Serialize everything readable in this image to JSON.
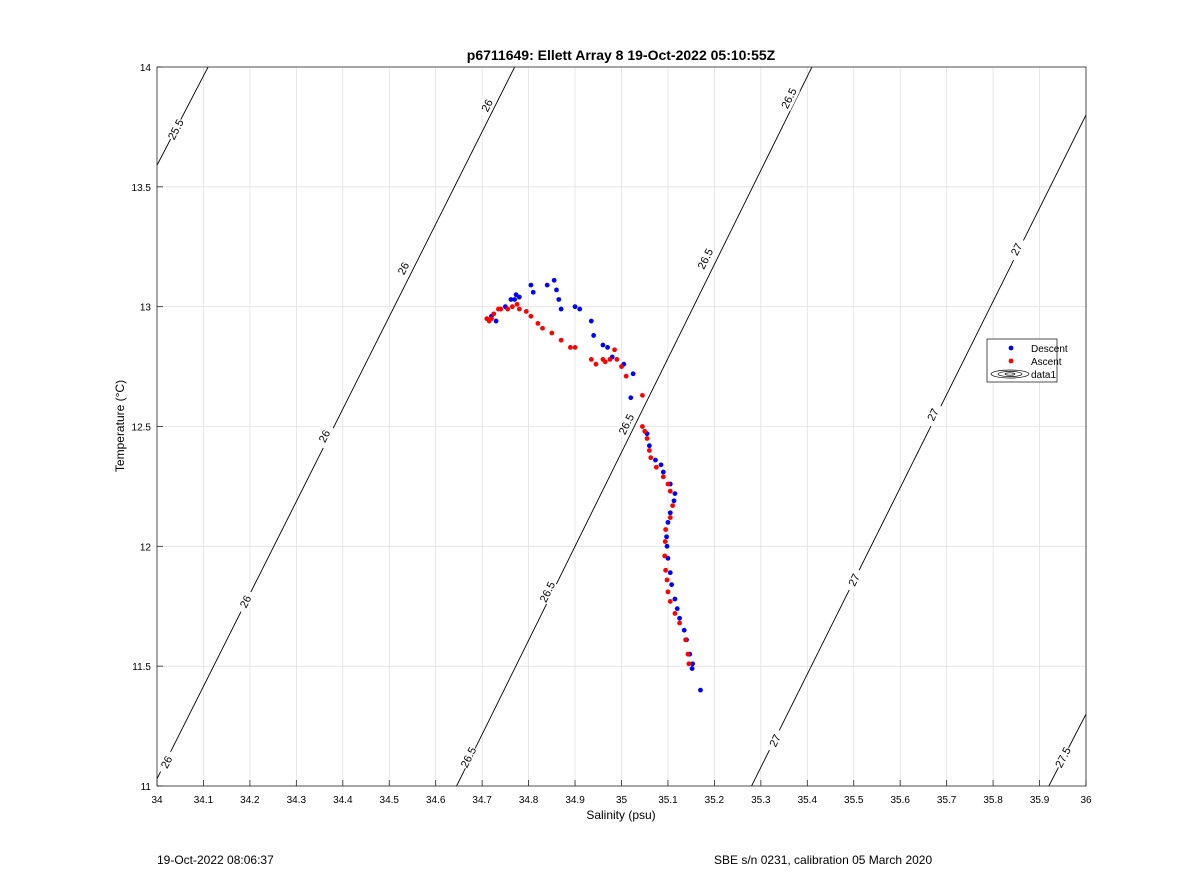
{
  "chart_data": {
    "type": "scatter",
    "title": "p6711649: Ellett Array 8 19-Oct-2022 05:10:55Z",
    "xlabel": "Salinity (psu)",
    "ylabel": "Temperature (°C)",
    "xlim": [
      34,
      36
    ],
    "ylim": [
      11,
      14
    ],
    "x_ticks": [
      "34",
      "34.1",
      "34.2",
      "34.3",
      "34.4",
      "34.5",
      "34.6",
      "34.7",
      "34.8",
      "34.9",
      "35",
      "35.1",
      "35.2",
      "35.3",
      "35.4",
      "35.5",
      "35.6",
      "35.7",
      "35.8",
      "35.9",
      "36"
    ],
    "y_ticks": [
      "11",
      "11.5",
      "12",
      "12.5",
      "13",
      "13.5",
      "14"
    ],
    "grid": true,
    "legend_position": "right",
    "legend": [
      "Descent",
      "Ascent",
      "data1"
    ],
    "series": [
      {
        "name": "Descent",
        "color": "#0000ff",
        "points": [
          [
            35.17,
            11.4
          ],
          [
            35.152,
            11.49
          ],
          [
            35.153,
            11.51
          ],
          [
            35.147,
            11.55
          ],
          [
            35.14,
            11.61
          ],
          [
            35.135,
            11.65
          ],
          [
            35.125,
            11.7
          ],
          [
            35.12,
            11.74
          ],
          [
            35.115,
            11.78
          ],
          [
            35.108,
            11.84
          ],
          [
            35.105,
            11.89
          ],
          [
            35.1,
            11.95
          ],
          [
            35.098,
            12.0
          ],
          [
            35.097,
            12.04
          ],
          [
            35.1,
            12.1
          ],
          [
            35.105,
            12.14
          ],
          [
            35.113,
            12.19
          ],
          [
            35.115,
            12.22
          ],
          [
            35.105,
            12.26
          ],
          [
            35.09,
            12.31
          ],
          [
            35.085,
            12.34
          ],
          [
            35.073,
            12.36
          ],
          [
            35.06,
            12.42
          ],
          [
            35.055,
            12.47
          ],
          [
            35.02,
            12.62
          ],
          [
            35.025,
            12.72
          ],
          [
            35.005,
            12.76
          ],
          [
            34.98,
            12.79
          ],
          [
            34.97,
            12.83
          ],
          [
            34.96,
            12.84
          ],
          [
            34.94,
            12.88
          ],
          [
            34.935,
            12.94
          ],
          [
            34.91,
            12.99
          ],
          [
            34.9,
            13.0
          ],
          [
            34.87,
            12.99
          ],
          [
            34.865,
            13.03
          ],
          [
            34.86,
            13.07
          ],
          [
            34.855,
            13.11
          ],
          [
            34.84,
            13.09
          ],
          [
            34.81,
            13.06
          ],
          [
            34.805,
            13.09
          ],
          [
            34.78,
            13.04
          ],
          [
            34.773,
            13.05
          ],
          [
            34.77,
            13.03
          ],
          [
            34.762,
            13.03
          ],
          [
            34.75,
            13.0
          ],
          [
            34.73,
            12.94
          ],
          [
            34.72,
            12.96
          ]
        ]
      },
      {
        "name": "Ascent",
        "color": "#ff0000",
        "points": [
          [
            35.145,
            11.51
          ],
          [
            35.143,
            11.55
          ],
          [
            35.138,
            11.61
          ],
          [
            35.125,
            11.68
          ],
          [
            35.115,
            11.72
          ],
          [
            35.105,
            11.77
          ],
          [
            35.1,
            11.81
          ],
          [
            35.098,
            11.86
          ],
          [
            35.095,
            11.9
          ],
          [
            35.093,
            11.96
          ],
          [
            35.094,
            12.02
          ],
          [
            35.095,
            12.07
          ],
          [
            35.105,
            12.12
          ],
          [
            35.11,
            12.17
          ],
          [
            35.105,
            12.23
          ],
          [
            35.1,
            12.26
          ],
          [
            35.09,
            12.29
          ],
          [
            35.075,
            12.33
          ],
          [
            35.063,
            12.37
          ],
          [
            35.06,
            12.4
          ],
          [
            35.055,
            12.45
          ],
          [
            35.05,
            12.48
          ],
          [
            35.045,
            12.5
          ],
          [
            35.045,
            12.63
          ],
          [
            35.01,
            12.71
          ],
          [
            35.0,
            12.75
          ],
          [
            34.99,
            12.78
          ],
          [
            34.985,
            12.82
          ],
          [
            34.975,
            12.78
          ],
          [
            34.965,
            12.77
          ],
          [
            34.96,
            12.78
          ],
          [
            34.945,
            12.76
          ],
          [
            34.935,
            12.78
          ],
          [
            34.9,
            12.83
          ],
          [
            34.89,
            12.83
          ],
          [
            34.87,
            12.86
          ],
          [
            34.85,
            12.89
          ],
          [
            34.83,
            12.91
          ],
          [
            34.82,
            12.93
          ],
          [
            34.805,
            12.96
          ],
          [
            34.795,
            12.98
          ],
          [
            34.78,
            12.99
          ],
          [
            34.775,
            13.01
          ],
          [
            34.765,
            13.0
          ],
          [
            34.755,
            12.99
          ],
          [
            34.74,
            12.99
          ],
          [
            34.735,
            12.99
          ],
          [
            34.725,
            12.97
          ],
          [
            34.72,
            12.95
          ],
          [
            34.715,
            12.94
          ],
          [
            34.71,
            12.95
          ]
        ]
      }
    ],
    "contours": [
      {
        "label": "25.5",
        "x": [
          34.0,
          34.11
        ],
        "y": [
          13.59,
          14.0
        ],
        "label_at": [
          [
            34.04,
            13.74
          ]
        ]
      },
      {
        "label": "26",
        "x": [
          34.0,
          34.77
        ],
        "y": [
          11.03,
          14.0
        ],
        "label_at": [
          [
            34.02,
            11.1
          ],
          [
            34.19,
            11.77
          ],
          [
            34.36,
            12.46
          ],
          [
            34.53,
            13.16
          ],
          [
            34.71,
            13.84
          ]
        ]
      },
      {
        "label": "26.5",
        "x": [
          34.645,
          35.41
        ],
        "y": [
          11.0,
          14.0
        ],
        "label_at": [
          [
            34.67,
            11.12
          ],
          [
            34.84,
            11.81
          ],
          [
            35.01,
            12.51
          ],
          [
            35.18,
            13.2
          ],
          [
            35.36,
            13.87
          ]
        ]
      },
      {
        "label": "27",
        "x": [
          35.28,
          36.0
        ],
        "y": [
          11.0,
          13.8
        ],
        "label_at": [
          [
            35.33,
            11.19
          ],
          [
            35.5,
            11.86
          ],
          [
            35.67,
            12.55
          ],
          [
            35.85,
            13.24
          ]
        ]
      },
      {
        "label": "27.5",
        "x": [
          35.92,
          36.0
        ],
        "y": [
          11.0,
          11.3
        ],
        "label_at": [
          [
            35.95,
            11.12
          ]
        ]
      }
    ]
  },
  "footer": {
    "left": "19-Oct-2022 08:06:37",
    "right": "SBE s/n 0231, calibration 05 March 2020"
  }
}
